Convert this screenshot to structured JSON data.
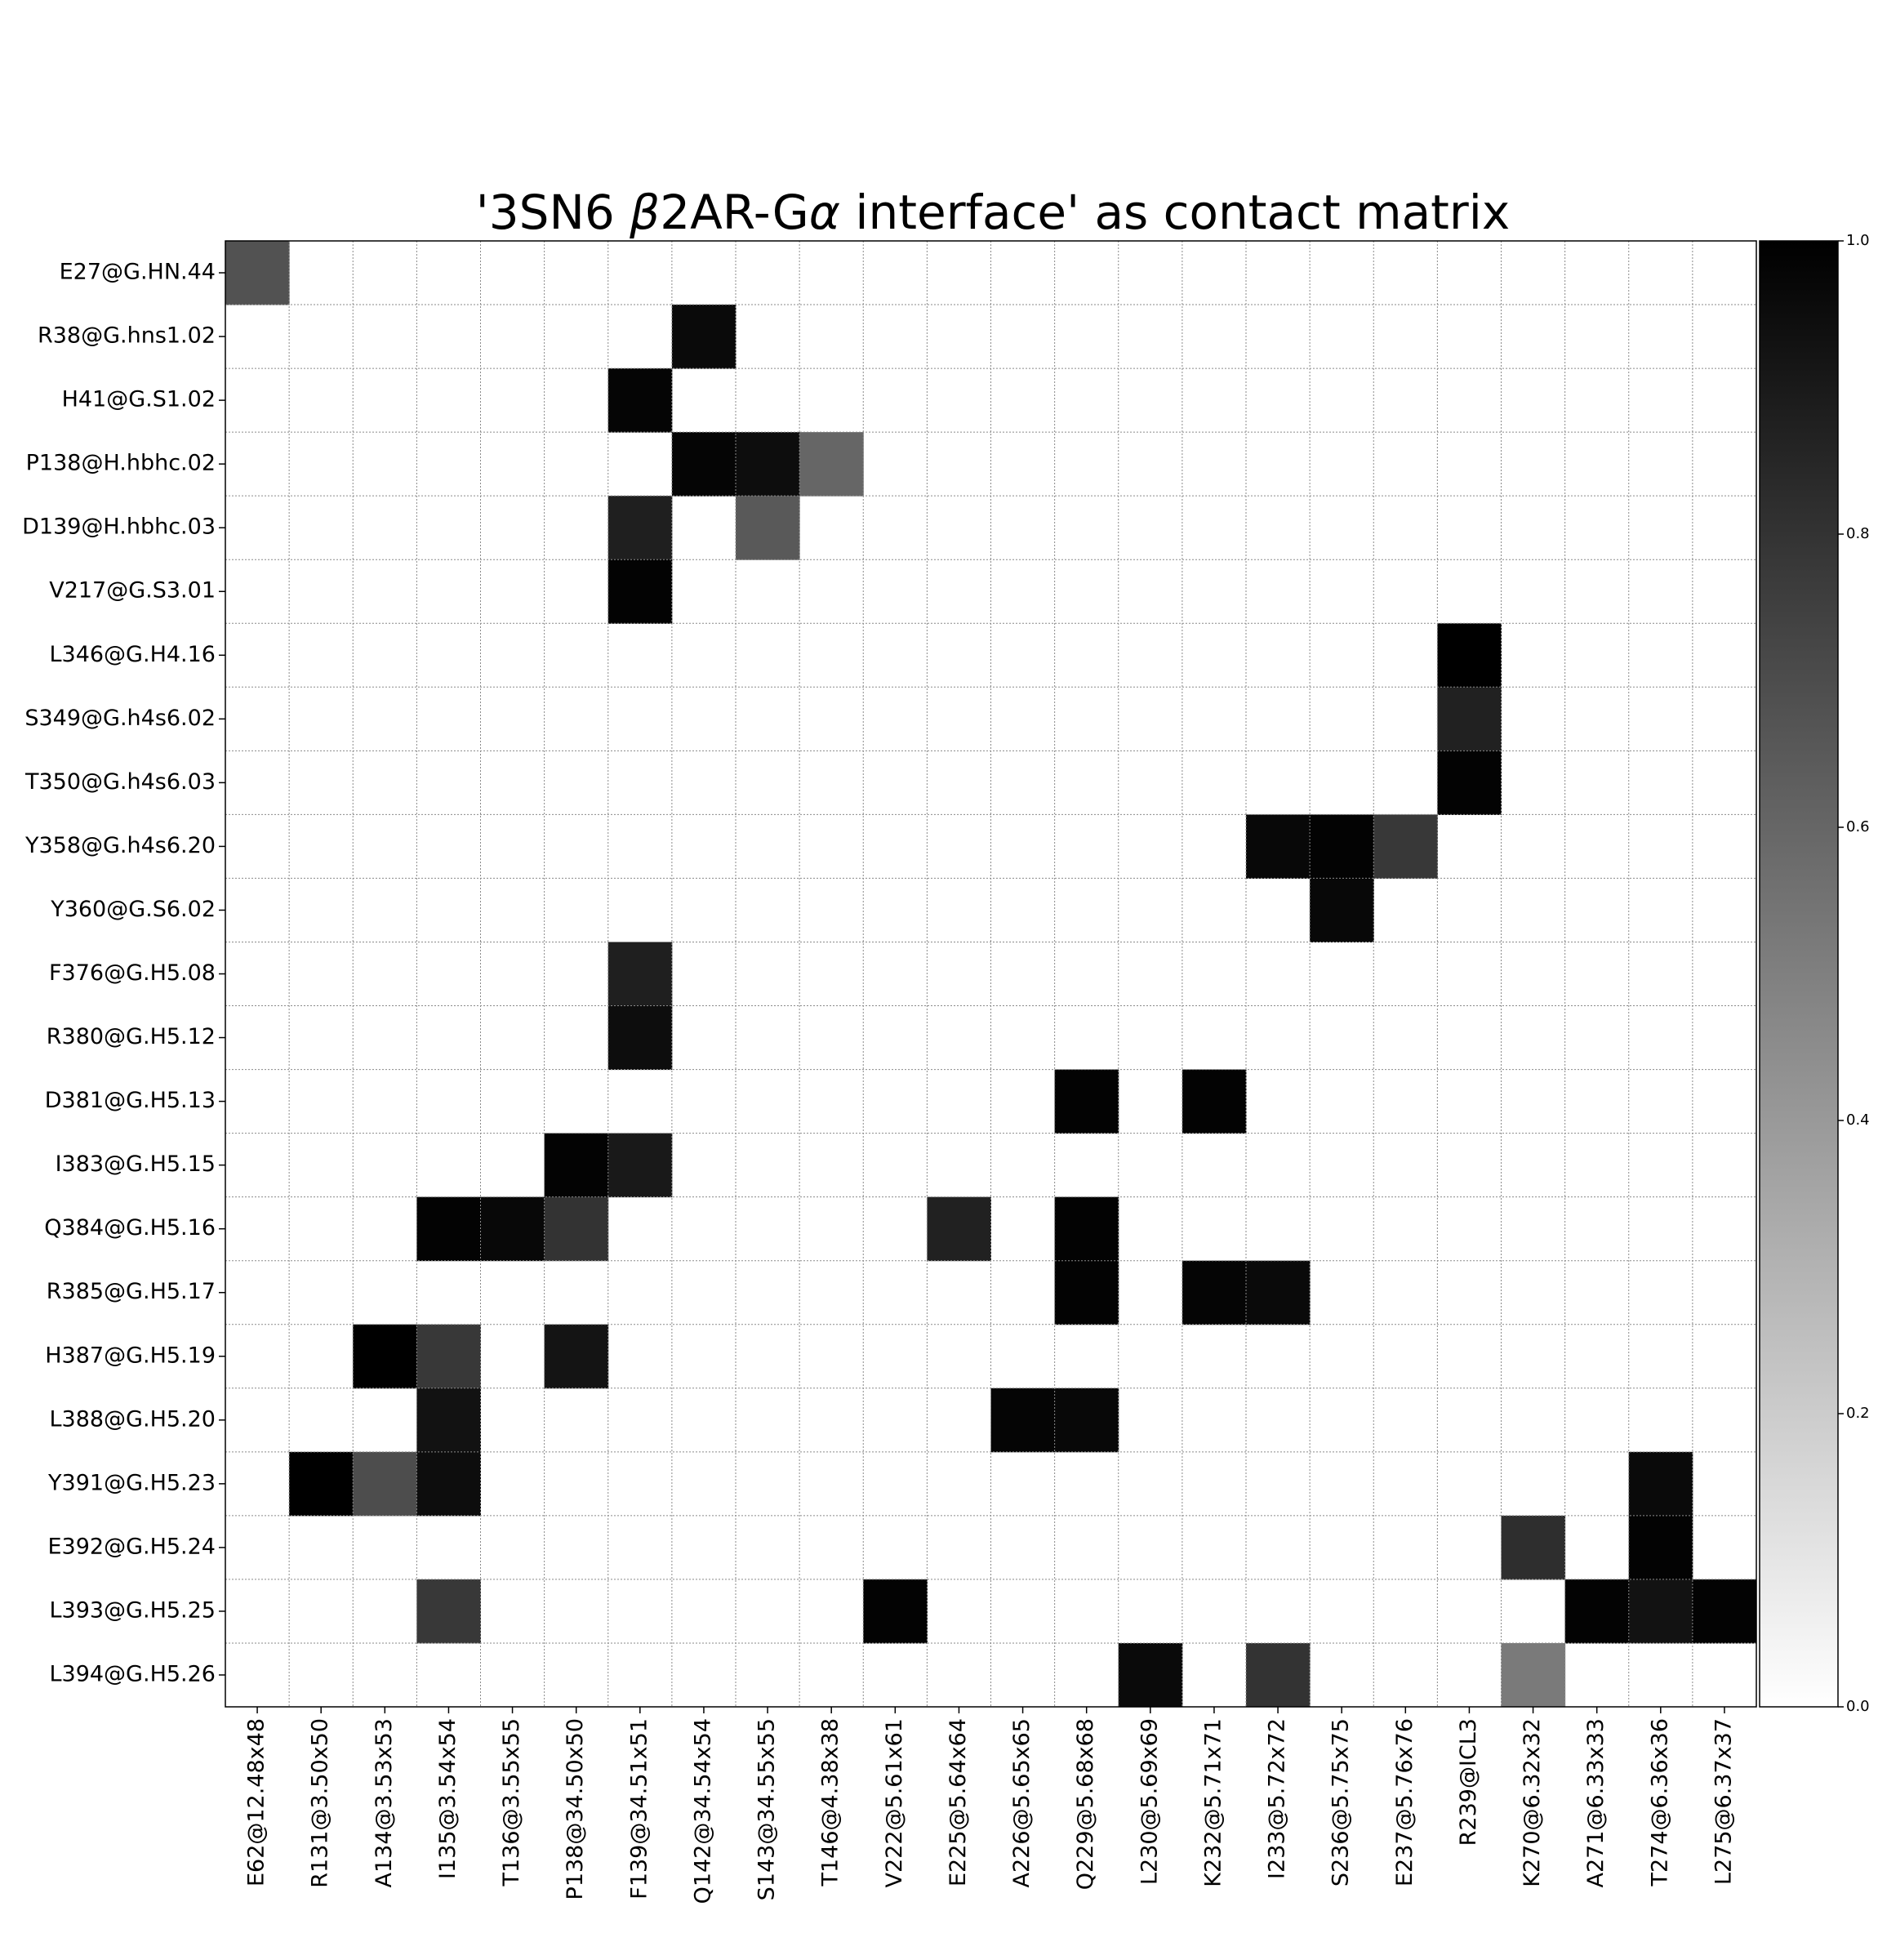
{
  "chart_data": {
    "type": "heatmap",
    "title_parts": [
      "'3SN6 ",
      "β",
      "2AR-G",
      "α",
      " interface'  as contact matrix"
    ],
    "rows": [
      "E27@G.HN.44",
      "R38@G.hns1.02",
      "H41@G.S1.02",
      "P138@H.hbhc.02",
      "D139@H.hbhc.03",
      "V217@G.S3.01",
      "L346@G.H4.16",
      "S349@G.h4s6.02",
      "T350@G.h4s6.03",
      "Y358@G.h4s6.20",
      "Y360@G.S6.02",
      "F376@G.H5.08",
      "R380@G.H5.12",
      "D381@G.H5.13",
      "I383@G.H5.15",
      "Q384@G.H5.16",
      "R385@G.H5.17",
      "H387@G.H5.19",
      "L388@G.H5.20",
      "Y391@G.H5.23",
      "E392@G.H5.24",
      "L393@G.H5.25",
      "L394@G.H5.26"
    ],
    "columns": [
      "E62@12.48x48",
      "R131@3.50x50",
      "A134@3.53x53",
      "I135@3.54x54",
      "T136@3.55x55",
      "P138@34.50x50",
      "F139@34.51x51",
      "Q142@34.54x54",
      "S143@34.55x55",
      "T146@4.38x38",
      "V222@5.61x61",
      "E225@5.64x64",
      "A226@5.65x65",
      "Q229@5.68x68",
      "L230@5.69x69",
      "K232@5.71x71",
      "I233@5.72x72",
      "S236@5.75x75",
      "E237@5.76x76",
      "R239@ICL3",
      "K270@6.32x32",
      "A271@6.33x33",
      "T274@6.36x36",
      "L275@6.37x37"
    ],
    "values": [
      [
        0.68,
        0,
        0,
        0,
        0,
        0,
        0,
        0,
        0,
        0,
        0,
        0,
        0,
        0,
        0,
        0,
        0,
        0,
        0,
        0,
        0,
        0,
        0,
        0
      ],
      [
        0,
        0,
        0,
        0,
        0,
        0,
        0,
        0.96,
        0,
        0,
        0,
        0,
        0,
        0,
        0,
        0,
        0,
        0,
        0,
        0,
        0,
        0,
        0,
        0
      ],
      [
        0,
        0,
        0,
        0,
        0,
        0,
        0.98,
        0,
        0,
        0,
        0,
        0,
        0,
        0,
        0,
        0,
        0,
        0,
        0,
        0,
        0,
        0,
        0,
        0
      ],
      [
        0,
        0,
        0,
        0,
        0,
        0,
        0,
        0.98,
        0.95,
        0.6,
        0,
        0,
        0,
        0,
        0,
        0,
        0,
        0,
        0,
        0,
        0,
        0,
        0,
        0
      ],
      [
        0,
        0,
        0,
        0,
        0,
        0,
        0.88,
        0,
        0.65,
        0,
        0,
        0,
        0,
        0,
        0,
        0,
        0,
        0,
        0,
        0,
        0,
        0,
        0,
        0
      ],
      [
        0,
        0,
        0,
        0,
        0,
        0,
        0.99,
        0,
        0,
        0,
        0,
        0,
        0,
        0,
        0,
        0,
        0,
        0,
        0,
        0,
        0,
        0,
        0,
        0
      ],
      [
        0,
        0,
        0,
        0,
        0,
        0,
        0,
        0,
        0,
        0,
        0,
        0,
        0,
        0,
        0,
        0,
        0,
        0,
        0,
        1.0,
        0,
        0,
        0,
        0
      ],
      [
        0,
        0,
        0,
        0,
        0,
        0,
        0,
        0,
        0,
        0,
        0,
        0,
        0,
        0,
        0,
        0,
        0,
        0,
        0,
        0.87,
        0,
        0,
        0,
        0
      ],
      [
        0,
        0,
        0,
        0,
        0,
        0,
        0,
        0,
        0,
        0,
        0,
        0,
        0,
        0,
        0,
        0,
        0,
        0,
        0,
        0.99,
        0,
        0,
        0,
        0
      ],
      [
        0,
        0,
        0,
        0,
        0,
        0,
        0,
        0,
        0,
        0,
        0,
        0,
        0,
        0,
        0,
        0,
        0.97,
        0.99,
        0.78,
        0,
        0,
        0,
        0,
        0
      ],
      [
        0,
        0,
        0,
        0,
        0,
        0,
        0,
        0,
        0,
        0,
        0,
        0,
        0,
        0,
        0,
        0,
        0,
        0.97,
        0,
        0,
        0,
        0,
        0,
        0
      ],
      [
        0,
        0,
        0,
        0,
        0,
        0,
        0.88,
        0,
        0,
        0,
        0,
        0,
        0,
        0,
        0,
        0,
        0,
        0,
        0,
        0,
        0,
        0,
        0,
        0
      ],
      [
        0,
        0,
        0,
        0,
        0,
        0,
        0.95,
        0,
        0,
        0,
        0,
        0,
        0,
        0,
        0,
        0,
        0,
        0,
        0,
        0,
        0,
        0,
        0,
        0
      ],
      [
        0,
        0,
        0,
        0,
        0,
        0,
        0,
        0,
        0,
        0,
        0,
        0,
        0,
        0.99,
        0,
        0.99,
        0,
        0,
        0,
        0,
        0,
        0,
        0,
        0
      ],
      [
        0,
        0,
        0,
        0,
        0,
        0.99,
        0.9,
        0,
        0,
        0,
        0,
        0,
        0,
        0,
        0,
        0,
        0,
        0,
        0,
        0,
        0,
        0,
        0,
        0
      ],
      [
        0,
        0,
        0,
        0.99,
        0.97,
        0.8,
        0,
        0,
        0,
        0,
        0,
        0.87,
        0,
        0.99,
        0,
        0,
        0,
        0,
        0,
        0,
        0,
        0,
        0,
        0
      ],
      [
        0,
        0,
        0,
        0,
        0,
        0,
        0,
        0,
        0,
        0,
        0,
        0,
        0,
        0.99,
        0,
        0.98,
        0.96,
        0,
        0,
        0,
        0,
        0,
        0,
        0
      ],
      [
        0,
        0,
        1.0,
        0.78,
        0,
        0.92,
        0,
        0,
        0,
        0,
        0,
        0,
        0,
        0,
        0,
        0,
        0,
        0,
        0,
        0,
        0,
        0,
        0,
        0
      ],
      [
        0,
        0,
        0,
        0.93,
        0,
        0,
        0,
        0,
        0,
        0,
        0,
        0,
        0.98,
        0.97,
        0,
        0,
        0,
        0,
        0,
        0,
        0,
        0,
        0,
        0
      ],
      [
        0,
        1.0,
        0.7,
        0.95,
        0,
        0,
        0,
        0,
        0,
        0,
        0,
        0,
        0,
        0,
        0,
        0,
        0,
        0,
        0,
        0,
        0,
        0,
        0.96,
        0
      ],
      [
        0,
        0,
        0,
        0,
        0,
        0,
        0,
        0,
        0,
        0,
        0,
        0,
        0,
        0,
        0,
        0,
        0,
        0,
        0,
        0,
        0.82,
        0,
        0.99,
        0
      ],
      [
        0,
        0,
        0,
        0.78,
        0,
        0,
        0,
        0,
        0,
        0,
        0.99,
        0,
        0,
        0,
        0,
        0,
        0,
        0,
        0,
        0,
        0,
        0.99,
        0.93,
        0.99
      ],
      [
        0,
        0,
        0,
        0,
        0,
        0,
        0,
        0,
        0,
        0,
        0,
        0,
        0,
        0,
        0.96,
        0,
        0.8,
        0,
        0,
        0,
        0.52,
        0,
        0,
        0
      ]
    ],
    "colorbar": {
      "range": [
        0.0,
        1.0
      ],
      "ticks": [
        "0.0",
        "0.2",
        "0.4",
        "0.6",
        "0.8",
        "1.0"
      ],
      "colormap": "greys"
    },
    "grid": true
  }
}
